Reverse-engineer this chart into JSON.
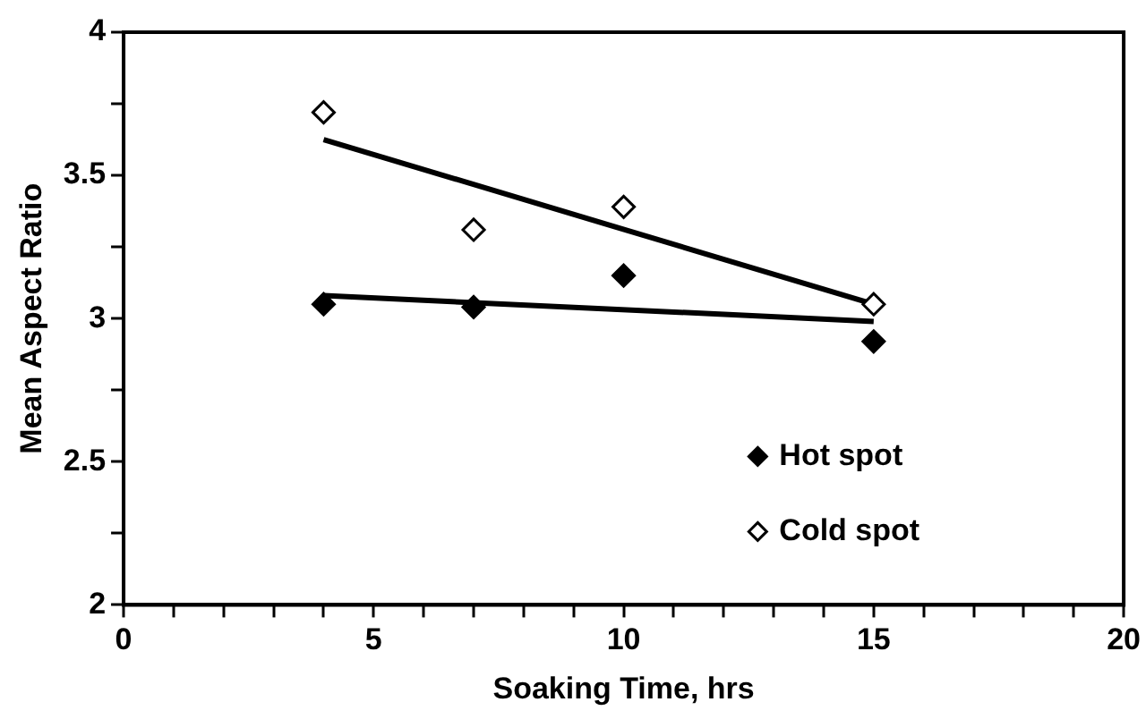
{
  "chart_data": {
    "type": "scatter",
    "xlabel": "Soaking Time, hrs",
    "ylabel": "Mean Aspect Ratio",
    "xlim": [
      0,
      20
    ],
    "xticks": [
      0,
      {
        "value": 1,
        "label": null
      },
      {
        "value": 2,
        "label": null
      },
      {
        "value": 3,
        "label": null
      },
      {
        "value": 4,
        "label": null
      },
      5,
      {
        "value": 6,
        "label": null
      },
      {
        "value": 7,
        "label": null
      },
      {
        "value": 8,
        "label": null
      },
      {
        "value": 9,
        "label": null
      },
      10,
      {
        "value": 11,
        "label": null
      },
      {
        "value": 12,
        "label": null
      },
      {
        "value": 13,
        "label": null
      },
      {
        "value": 14,
        "label": null
      },
      15,
      {
        "value": 16,
        "label": null
      },
      {
        "value": 17,
        "label": null
      },
      {
        "value": 18,
        "label": null
      },
      {
        "value": 19,
        "label": null
      },
      20
    ],
    "ylim": [
      2,
      4
    ],
    "yticks": [
      2,
      {
        "value": 2.25,
        "label": null
      },
      2.5,
      {
        "value": 2.75,
        "label": null
      },
      3,
      {
        "value": 3.25,
        "label": null
      },
      3.5,
      {
        "value": 3.75,
        "label": null
      },
      4
    ],
    "grid": false,
    "legend": "bottom right",
    "marker": "diamond",
    "series": [
      {
        "name": "Hot spot",
        "color": "#000000",
        "x": [
          4,
          7,
          10,
          15
        ],
        "values": [
          3.05,
          3.04,
          3.15,
          2.92
        ]
      },
      {
        "name": "Cold spot",
        "color": "#000000",
        "x": [
          4,
          7,
          10,
          15
        ],
        "values": [
          3.72,
          3.31,
          3.39,
          3.05
        ]
      },
      {
        "type": "line",
        "color": "#000000",
        "x": [
          4,
          15
        ],
        "values": [
          3.08,
          2.99
        ],
        "marker": "none"
      },
      {
        "type": "line",
        "color": "#000000",
        "x": [
          4,
          15
        ],
        "values": [
          3.625,
          3.05
        ],
        "marker": "none"
      }
    ]
  }
}
